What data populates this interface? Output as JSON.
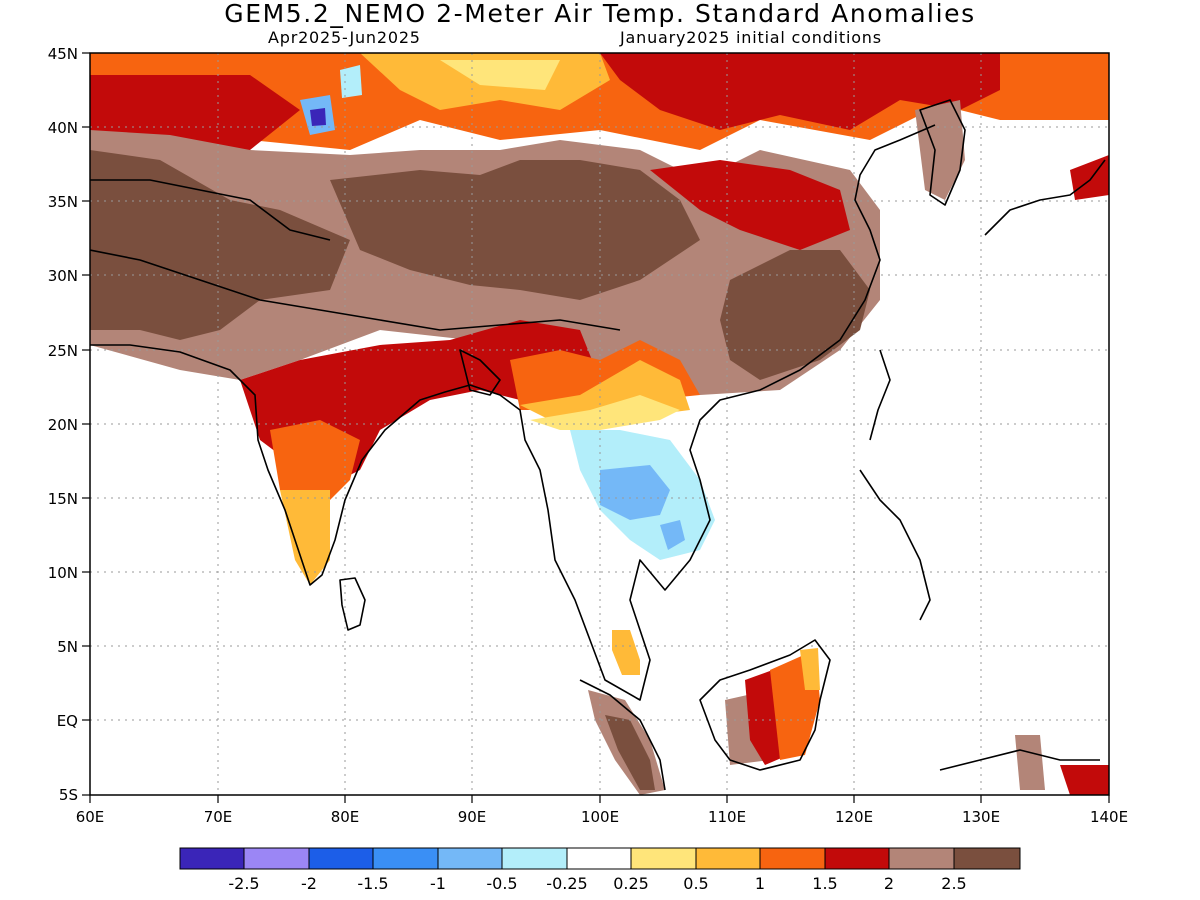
{
  "title": "GEM5.2_NEMO 2-Meter Air Temp. Standard Anomalies",
  "subtitle_left": "Apr2025-Jun2025",
  "subtitle_right": "January2025 initial conditions",
  "map": {
    "lon_range": [
      60,
      140
    ],
    "lat_range": [
      -5,
      45
    ],
    "lon_ticks": [
      "60E",
      "70E",
      "80E",
      "90E",
      "100E",
      "110E",
      "120E",
      "130E",
      "140E"
    ],
    "lat_ticks": [
      "5S",
      "EQ",
      "5N",
      "10N",
      "15N",
      "20N",
      "25N",
      "30N",
      "35N",
      "40N",
      "45N"
    ],
    "gridlines": "dotted"
  },
  "colorbar": {
    "colors": [
      "#3a25b8",
      "#9b86f5",
      "#1c5ee8",
      "#3a8ff5",
      "#74b8f7",
      "#b3eefa",
      "#ffffff",
      "#ffe57a",
      "#ffba38",
      "#f76410",
      "#c20a0a",
      "#b38578",
      "#7a4f3e"
    ],
    "labels": [
      "-2.5",
      "-2",
      "-1.5",
      "-1",
      "-0.5",
      "-0.25",
      "0.25",
      "0.5",
      "1",
      "1.5",
      "2",
      "2.5"
    ]
  },
  "regions": [
    {
      "name": "central-asia-north",
      "color": "#f76410"
    },
    {
      "name": "iran-pakistan-tibet",
      "color": "#7a4f3e"
    },
    {
      "name": "south-china",
      "color": "#7a4f3e"
    },
    {
      "name": "indochina-cool",
      "color": "#b3eefa"
    },
    {
      "name": "borneo",
      "color": "#c20a0a"
    }
  ]
}
